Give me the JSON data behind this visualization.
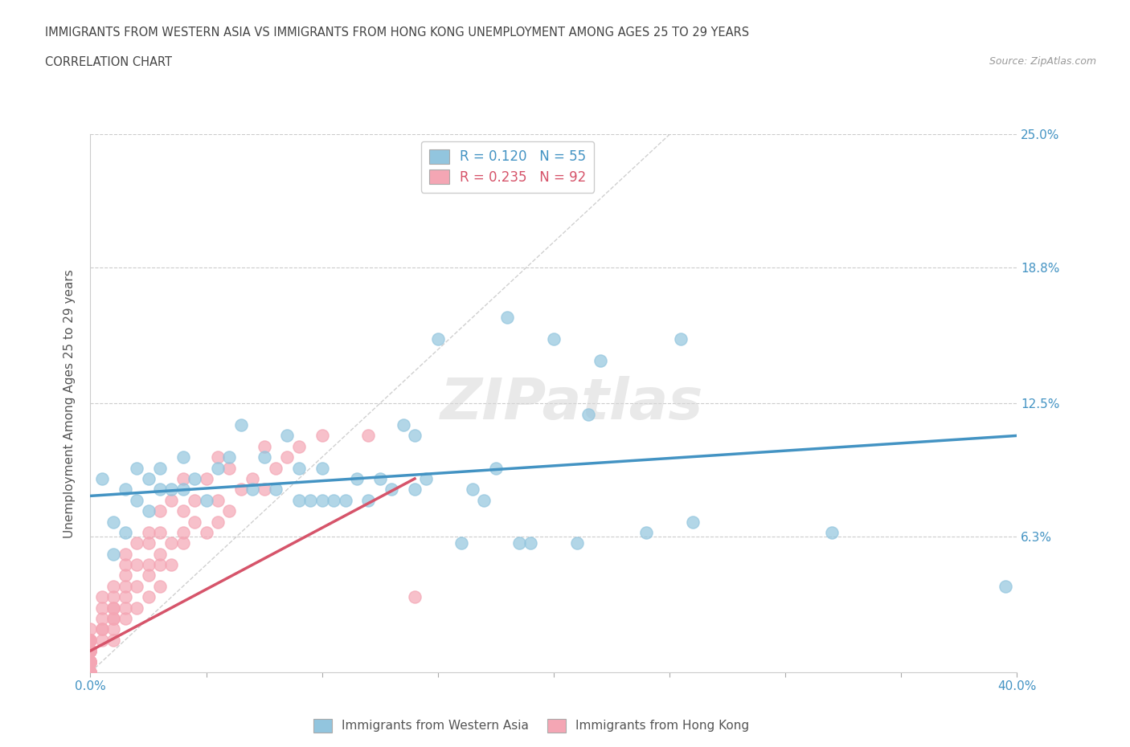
{
  "title_line1": "IMMIGRANTS FROM WESTERN ASIA VS IMMIGRANTS FROM HONG KONG UNEMPLOYMENT AMONG AGES 25 TO 29 YEARS",
  "title_line2": "CORRELATION CHART",
  "source_text": "Source: ZipAtlas.com",
  "ylabel": "Unemployment Among Ages 25 to 29 years",
  "xlim": [
    0.0,
    0.4
  ],
  "ylim": [
    0.0,
    0.25
  ],
  "xticks": [
    0.0,
    0.05,
    0.1,
    0.15,
    0.2,
    0.25,
    0.3,
    0.35,
    0.4
  ],
  "ytick_positions": [
    0.0,
    0.063,
    0.125,
    0.188,
    0.25
  ],
  "ytick_labels": [
    "",
    "6.3%",
    "12.5%",
    "18.8%",
    "25.0%"
  ],
  "color_western_asia": "#92c5de",
  "color_hong_kong": "#f4a6b4",
  "color_line_western_asia": "#4393c3",
  "color_line_hong_kong": "#d6546a",
  "color_diagonal": "#d0d0d0",
  "r_western_asia": 0.12,
  "n_western_asia": 55,
  "r_hong_kong": 0.235,
  "n_hong_kong": 92,
  "wa_trend_x0": 0.0,
  "wa_trend_y0": 0.082,
  "wa_trend_x1": 0.4,
  "wa_trend_y1": 0.11,
  "hk_trend_x0": 0.0,
  "hk_trend_y0": 0.01,
  "hk_trend_x1": 0.14,
  "hk_trend_y1": 0.09,
  "western_asia_x": [
    0.005,
    0.01,
    0.01,
    0.015,
    0.015,
    0.02,
    0.02,
    0.025,
    0.025,
    0.03,
    0.03,
    0.035,
    0.04,
    0.04,
    0.045,
    0.05,
    0.055,
    0.06,
    0.065,
    0.07,
    0.075,
    0.08,
    0.085,
    0.09,
    0.09,
    0.095,
    0.1,
    0.1,
    0.105,
    0.11,
    0.115,
    0.12,
    0.125,
    0.13,
    0.135,
    0.14,
    0.14,
    0.145,
    0.15,
    0.16,
    0.165,
    0.17,
    0.175,
    0.18,
    0.185,
    0.19,
    0.2,
    0.21,
    0.215,
    0.22,
    0.24,
    0.255,
    0.26,
    0.32,
    0.395
  ],
  "western_asia_y": [
    0.09,
    0.055,
    0.07,
    0.065,
    0.085,
    0.08,
    0.095,
    0.075,
    0.09,
    0.085,
    0.095,
    0.085,
    0.085,
    0.1,
    0.09,
    0.08,
    0.095,
    0.1,
    0.115,
    0.085,
    0.1,
    0.085,
    0.11,
    0.08,
    0.095,
    0.08,
    0.08,
    0.095,
    0.08,
    0.08,
    0.09,
    0.08,
    0.09,
    0.085,
    0.115,
    0.11,
    0.085,
    0.09,
    0.155,
    0.06,
    0.085,
    0.08,
    0.095,
    0.165,
    0.06,
    0.06,
    0.155,
    0.06,
    0.12,
    0.145,
    0.065,
    0.155,
    0.07,
    0.065,
    0.04
  ],
  "hong_kong_x": [
    0.0,
    0.0,
    0.0,
    0.0,
    0.0,
    0.0,
    0.0,
    0.0,
    0.0,
    0.0,
    0.0,
    0.0,
    0.0,
    0.0,
    0.0,
    0.0,
    0.0,
    0.0,
    0.0,
    0.0,
    0.0,
    0.0,
    0.0,
    0.0,
    0.0,
    0.0,
    0.0,
    0.0,
    0.0,
    0.0,
    0.0,
    0.005,
    0.005,
    0.005,
    0.005,
    0.005,
    0.005,
    0.01,
    0.01,
    0.01,
    0.01,
    0.01,
    0.01,
    0.01,
    0.01,
    0.015,
    0.015,
    0.015,
    0.015,
    0.015,
    0.015,
    0.015,
    0.02,
    0.02,
    0.02,
    0.02,
    0.025,
    0.025,
    0.025,
    0.025,
    0.025,
    0.03,
    0.03,
    0.03,
    0.03,
    0.03,
    0.035,
    0.035,
    0.035,
    0.04,
    0.04,
    0.04,
    0.04,
    0.045,
    0.045,
    0.05,
    0.05,
    0.055,
    0.055,
    0.055,
    0.06,
    0.06,
    0.065,
    0.07,
    0.075,
    0.075,
    0.08,
    0.085,
    0.09,
    0.1,
    0.12,
    0.14
  ],
  "hong_kong_y": [
    0.0,
    0.0,
    0.0,
    0.0,
    0.0,
    0.0,
    0.0,
    0.0,
    0.005,
    0.005,
    0.005,
    0.005,
    0.005,
    0.005,
    0.005,
    0.005,
    0.005,
    0.01,
    0.01,
    0.01,
    0.01,
    0.01,
    0.01,
    0.01,
    0.01,
    0.01,
    0.015,
    0.015,
    0.015,
    0.015,
    0.02,
    0.015,
    0.02,
    0.02,
    0.025,
    0.03,
    0.035,
    0.015,
    0.02,
    0.025,
    0.025,
    0.03,
    0.03,
    0.035,
    0.04,
    0.025,
    0.03,
    0.035,
    0.04,
    0.045,
    0.05,
    0.055,
    0.03,
    0.04,
    0.05,
    0.06,
    0.035,
    0.045,
    0.05,
    0.06,
    0.065,
    0.04,
    0.05,
    0.055,
    0.065,
    0.075,
    0.05,
    0.06,
    0.08,
    0.06,
    0.065,
    0.075,
    0.09,
    0.07,
    0.08,
    0.065,
    0.09,
    0.07,
    0.08,
    0.1,
    0.075,
    0.095,
    0.085,
    0.09,
    0.085,
    0.105,
    0.095,
    0.1,
    0.105,
    0.11,
    0.11,
    0.035
  ]
}
